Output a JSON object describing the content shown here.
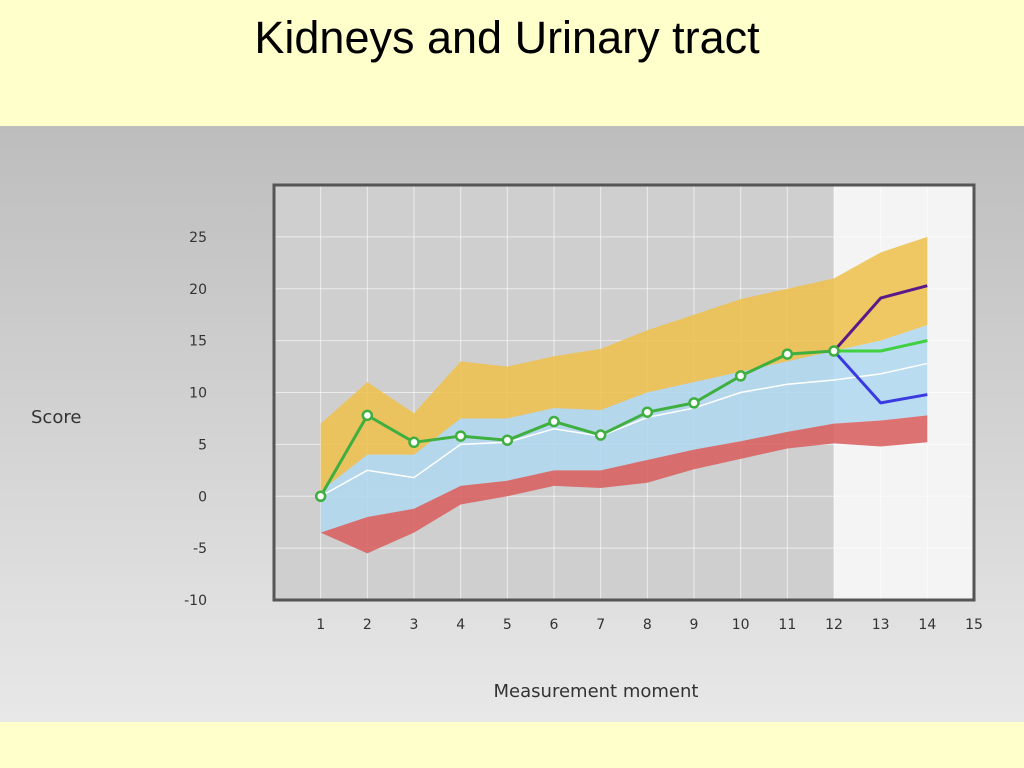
{
  "title": "Kidneys and Urinary tract",
  "chart_data": {
    "type": "line",
    "xlabel": "Measurement moment",
    "ylabel": "Score",
    "x": [
      1,
      2,
      3,
      4,
      5,
      6,
      7,
      8,
      9,
      10,
      11,
      12,
      13,
      14
    ],
    "xlim": [
      0,
      15
    ],
    "ylim": [
      -10,
      30
    ],
    "x_ticks": [
      1,
      2,
      3,
      4,
      5,
      6,
      7,
      8,
      9,
      10,
      11,
      12,
      13,
      14,
      15
    ],
    "y_ticks": [
      -10,
      -5,
      0,
      5,
      10,
      15,
      20,
      25
    ],
    "grid": true,
    "observed_until_x": 12,
    "bands": [
      {
        "role": "upper",
        "color": "#eec150",
        "low": [
          0.5,
          4,
          4,
          7.5,
          7.5,
          8.5,
          8.3,
          10,
          11,
          12,
          13,
          14,
          15,
          16.5
        ],
        "high": [
          7,
          11,
          8,
          13,
          12.5,
          13.5,
          14.2,
          16,
          17.5,
          19,
          20,
          21,
          23.5,
          25
        ]
      },
      {
        "role": "middle",
        "color": "#b0d8f0",
        "low": [
          -3.5,
          -2,
          -1.2,
          1,
          1.5,
          2.5,
          2.5,
          3.5,
          4.5,
          5.3,
          6.2,
          7,
          7.3,
          7.8
        ],
        "high": [
          0.5,
          4,
          4,
          7.5,
          7.5,
          8.5,
          8.3,
          10,
          11,
          12,
          13,
          14,
          15,
          16.5
        ]
      },
      {
        "role": "lower",
        "color": "#d96060",
        "low": [
          -3.5,
          -5.5,
          -3.5,
          -0.8,
          0,
          1,
          0.8,
          1.3,
          2.6,
          3.6,
          4.6,
          5.1,
          4.8,
          5.2
        ],
        "high": [
          -3.5,
          -2,
          -1.2,
          1,
          1.5,
          2.5,
          2.5,
          3.5,
          4.5,
          5.3,
          6.2,
          7,
          7.3,
          7.8
        ]
      }
    ],
    "series": [
      {
        "role": "median",
        "color": "#ffffff",
        "x": [
          1,
          2,
          3,
          4,
          5,
          6,
          7,
          8,
          9,
          10,
          11,
          12,
          13,
          14
        ],
        "values": [
          0,
          2.5,
          1.8,
          5,
          5.2,
          6.5,
          5.8,
          7.6,
          8.5,
          10,
          10.8,
          11.2,
          11.8,
          12.8
        ]
      },
      {
        "role": "measured",
        "color": "#3faf3f",
        "x": [
          1,
          2,
          3,
          4,
          5,
          6,
          7,
          8,
          9,
          10,
          11,
          12
        ],
        "values": [
          0,
          7.8,
          5.2,
          5.8,
          5.4,
          7.2,
          5.9,
          8.1,
          9,
          11.6,
          13.7,
          14
        ]
      },
      {
        "role": "projection-high",
        "color": "#5a1a8a",
        "x": [
          12,
          13,
          14
        ],
        "values": [
          14,
          19.1,
          20.3
        ]
      },
      {
        "role": "projection-mid",
        "color": "#40d040",
        "x": [
          12,
          13,
          14
        ],
        "values": [
          14,
          14,
          15
        ]
      },
      {
        "role": "projection-low",
        "color": "#3a3ae0",
        "x": [
          12,
          13,
          14
        ],
        "values": [
          14,
          9,
          9.8
        ]
      }
    ]
  }
}
